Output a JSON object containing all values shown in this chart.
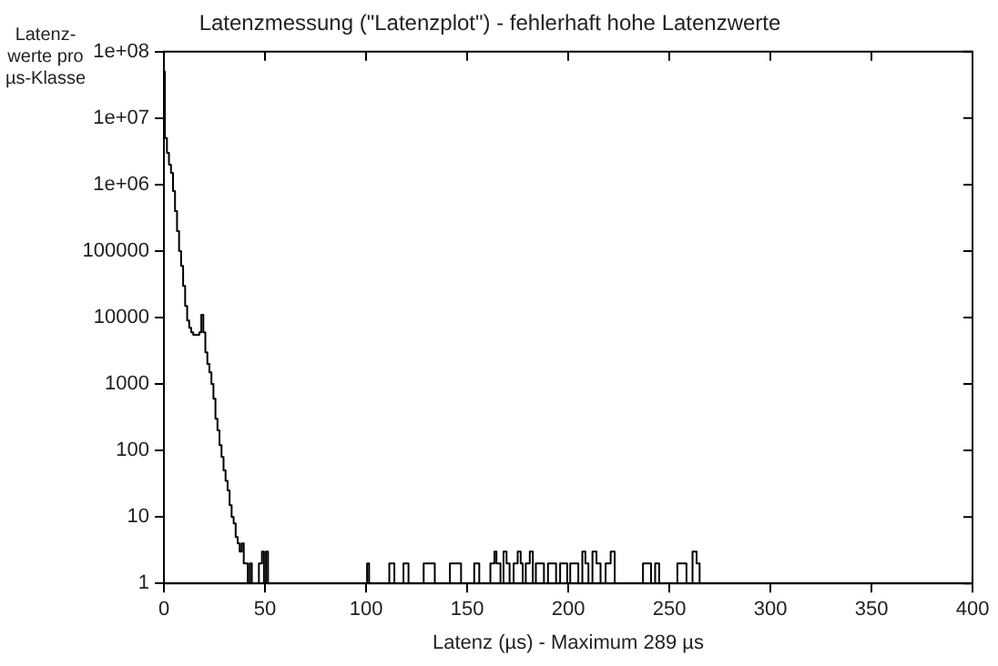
{
  "chart_data": {
    "type": "step",
    "title": "Latenzmessung (\"Latenzplot\") - fehlerhaft hohe Latenzwerte",
    "xlabel": "Latenz (µs) - Maximum 289 µs",
    "ylabel": "Latenz-\nwerte pro\nµs-Klasse",
    "log": "y",
    "grid": false,
    "legend": false,
    "series": [
      {
        "color": "#000000",
        "x": [
          0,
          1,
          2,
          3,
          4,
          5,
          6,
          7,
          8,
          9,
          10,
          11,
          12,
          13,
          14,
          15,
          16,
          17,
          18,
          19,
          20,
          21,
          22,
          23,
          24,
          25,
          26,
          27,
          28,
          29,
          30,
          31,
          32,
          33,
          34,
          35,
          36,
          37,
          38,
          39,
          40,
          41,
          42,
          43,
          44,
          45,
          46,
          48,
          49,
          50,
          51,
          52,
          55,
          57,
          59,
          62,
          66,
          73,
          95,
          96,
          98,
          100,
          101,
          102,
          104,
          108,
          110,
          113,
          115,
          117,
          120,
          122,
          125,
          127,
          130,
          131,
          133,
          135,
          137,
          140,
          143,
          144,
          146,
          148,
          150,
          152,
          155,
          157,
          160,
          163,
          164,
          165,
          166,
          167,
          169,
          170,
          172,
          174,
          176,
          177,
          178,
          180,
          182,
          183,
          185,
          187,
          189,
          191,
          193,
          195,
          197,
          199,
          200,
          202,
          204,
          206,
          208,
          209,
          211,
          213,
          215,
          217,
          220,
          222,
          224,
          226,
          228,
          230,
          233,
          236,
          238,
          240,
          242,
          244,
          246,
          248,
          251,
          253,
          255,
          257,
          260,
          263,
          264,
          266,
          268,
          272,
          275,
          277,
          280,
          284,
          289
        ],
        "values": [
          50000000,
          5000000,
          3000000,
          2000000,
          1500000,
          800000,
          400000,
          200000,
          100000,
          60000,
          30000,
          15000,
          9000,
          7000,
          6000,
          5500,
          5500,
          5500,
          6000,
          11000,
          6000,
          3000,
          2000,
          1500,
          1000,
          600,
          300,
          200,
          120,
          80,
          50,
          35,
          25,
          15,
          10,
          8,
          5,
          4,
          3,
          4,
          2,
          2,
          1,
          2,
          1,
          1,
          1,
          2,
          3,
          1,
          3,
          1,
          1,
          1,
          1,
          1,
          1,
          1,
          1,
          1,
          1,
          1,
          2,
          1,
          1,
          1,
          1,
          2,
          1,
          1,
          2,
          1,
          1,
          1,
          2,
          2,
          2,
          1,
          1,
          1,
          2,
          2,
          2,
          1,
          1,
          1,
          2,
          1,
          1,
          2,
          3,
          2,
          2,
          1,
          3,
          2,
          1,
          2,
          3,
          2,
          1,
          2,
          3,
          1,
          2,
          2,
          1,
          2,
          2,
          1,
          2,
          2,
          1,
          2,
          2,
          1,
          3,
          2,
          1,
          3,
          2,
          1,
          2,
          3,
          1,
          1,
          1,
          1,
          1,
          1,
          2,
          2,
          1,
          2,
          1,
          1,
          1,
          1,
          2,
          2,
          1,
          3,
          2,
          1,
          1,
          1,
          1,
          1,
          1,
          1,
          1
        ]
      }
    ],
    "xlim": [
      0,
      400
    ],
    "xticks": [
      0,
      50,
      100,
      150,
      200,
      250,
      300,
      350,
      400
    ],
    "ylim": [
      1,
      100000000
    ],
    "yticks": [
      {
        "value": 1,
        "label": "1"
      },
      {
        "value": 10,
        "label": "10"
      },
      {
        "value": 100,
        "label": "100"
      },
      {
        "value": 1000,
        "label": "1000"
      },
      {
        "value": 10000,
        "label": "10000"
      },
      {
        "value": 100000,
        "label": "100000"
      },
      {
        "value": 1000000,
        "label": "1e+06"
      },
      {
        "value": 10000000,
        "label": "1e+07"
      },
      {
        "value": 100000000,
        "label": "1e+08"
      }
    ]
  }
}
